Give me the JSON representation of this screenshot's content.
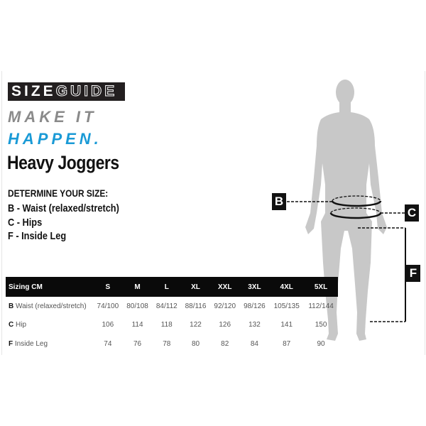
{
  "logo": {
    "text_bold": "SIZE",
    "text_outline": "GUIDE"
  },
  "tagline": {
    "line1": "MAKE IT",
    "line2": "HAPPEN."
  },
  "product_title": "Heavy Joggers",
  "instructions": {
    "heading": "DETERMINE YOUR SIZE:",
    "items": [
      "B - Waist (relaxed/stretch)",
      "C - Hips",
      "F - Inside Leg"
    ]
  },
  "table": {
    "header": [
      "Sizing CM",
      "S",
      "M",
      "L",
      "XL",
      "XXL",
      "3XL",
      "4XL",
      "5XL"
    ],
    "rows": [
      {
        "key": "B",
        "label": "Waist (relaxed/stretch)",
        "values": [
          "74/100",
          "80/108",
          "84/112",
          "88/116",
          "92/120",
          "98/126",
          "105/135",
          "112/144"
        ]
      },
      {
        "key": "C",
        "label": "Hip",
        "values": [
          "106",
          "114",
          "118",
          "122",
          "126",
          "132",
          "141",
          "150"
        ]
      },
      {
        "key": "F",
        "label": "Inside Leg",
        "values": [
          "74",
          "76",
          "78",
          "80",
          "82",
          "84",
          "87",
          "90"
        ]
      }
    ]
  },
  "diagram_labels": {
    "waist": "B",
    "hips": "C",
    "inside_leg": "F"
  },
  "colors": {
    "accent_blue": "#1a9ad6",
    "tag_grey": "#8a8a8a",
    "silhouette": "#c8c8c8",
    "dark": "#111111"
  }
}
